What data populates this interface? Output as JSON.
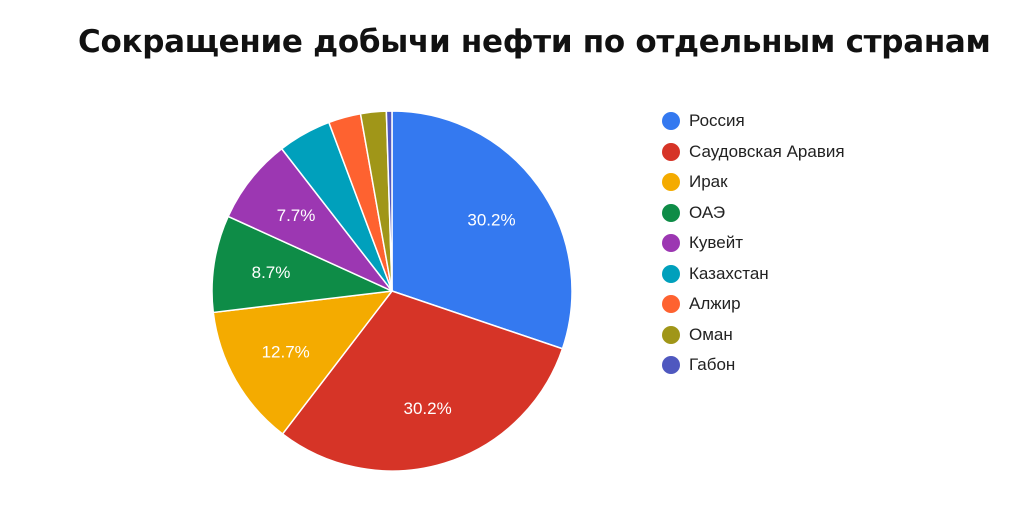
{
  "chart_data": {
    "type": "pie",
    "title": "Сокращение добычи нефти по отдельным странам",
    "categories": [
      "Россия",
      "Саудовская Аравия",
      "Ирак",
      "ОАЭ",
      "Кувейт",
      "Казахстан",
      "Алжир",
      "Оман",
      "Габон"
    ],
    "values": [
      30.2,
      30.2,
      12.7,
      8.7,
      7.7,
      4.8,
      2.9,
      2.3,
      0.5
    ],
    "unit": "%",
    "colors": [
      "#3479f0",
      "#d63427",
      "#f4ab00",
      "#0e8c47",
      "#9c37b2",
      "#00a0bc",
      "#fe6230",
      "#a09618",
      "#4f58bf"
    ],
    "data_labels": [
      "30.2%",
      "30.2%",
      "12.7%",
      "8.7%",
      "7.7%",
      "",
      "",
      "",
      ""
    ],
    "legend_position": "right",
    "start_angle_deg": 0,
    "direction": "clockwise"
  },
  "title": "Сокращение добычи нефти по отдельным странам",
  "legend": {
    "items": [
      {
        "label": "Россия",
        "color": "#3479f0"
      },
      {
        "label": "Саудовская Аравия",
        "color": "#d63427"
      },
      {
        "label": "Ирак",
        "color": "#f4ab00"
      },
      {
        "label": "ОАЭ",
        "color": "#0e8c47"
      },
      {
        "label": "Кувейт",
        "color": "#9c37b2"
      },
      {
        "label": "Казахстан",
        "color": "#00a0bc"
      },
      {
        "label": "Алжир",
        "color": "#fe6230"
      },
      {
        "label": "Оман",
        "color": "#a09618"
      },
      {
        "label": "Габон",
        "color": "#4f58bf"
      }
    ]
  }
}
